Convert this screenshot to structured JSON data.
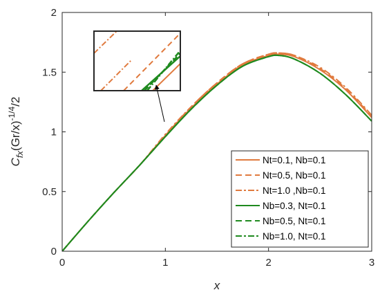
{
  "chart_data": {
    "type": "line",
    "xlabel": "x",
    "ylabel": {
      "c": "C",
      "fx_sub": "fx",
      "mid": "(Gr/x)",
      "sup": "-1/4",
      "tail": "/2"
    },
    "xlim": [
      0,
      3
    ],
    "ylim": [
      0,
      2
    ],
    "xticks": [
      0,
      1,
      2,
      3
    ],
    "xtick_labels": [
      "0",
      "1",
      "2",
      "3"
    ],
    "yticks": [
      0,
      0.5,
      1,
      1.5,
      2
    ],
    "ytick_labels": [
      "0",
      "0.5",
      "1",
      "1.5",
      "2"
    ],
    "grid": false,
    "legend_position": "lower-right",
    "x": [
      0,
      0.25,
      0.5,
      0.75,
      1.0,
      1.25,
      1.5,
      1.75,
      2.0,
      2.1,
      2.25,
      2.5,
      2.75,
      3.0
    ],
    "series": [
      {
        "name": "Nt=0.1, Nb=0.1",
        "color": "#e07a3e",
        "style": "solid",
        "values": [
          0,
          0.25,
          0.49,
          0.72,
          0.97,
          1.2,
          1.4,
          1.56,
          1.64,
          1.65,
          1.63,
          1.52,
          1.35,
          1.12
        ]
      },
      {
        "name": "Nt=0.5, Nb=0.1",
        "color": "#e07a3e",
        "style": "dashed",
        "values": [
          0,
          0.25,
          0.49,
          0.72,
          0.97,
          1.21,
          1.41,
          1.57,
          1.65,
          1.66,
          1.64,
          1.53,
          1.36,
          1.13
        ]
      },
      {
        "name": "Nt=1.0 ,Nb=0.1",
        "color": "#e07a3e",
        "style": "dashdot",
        "values": [
          0,
          0.25,
          0.49,
          0.72,
          0.98,
          1.21,
          1.41,
          1.57,
          1.65,
          1.66,
          1.64,
          1.54,
          1.37,
          1.14
        ]
      },
      {
        "name": "Nb=0.3, Nt=0.1",
        "color": "#1f8a1f",
        "style": "solid",
        "values": [
          0,
          0.25,
          0.49,
          0.72,
          0.96,
          1.19,
          1.39,
          1.55,
          1.63,
          1.64,
          1.61,
          1.49,
          1.31,
          1.09
        ]
      },
      {
        "name": "Nb=0.5, Nt=0.1",
        "color": "#1f8a1f",
        "style": "dashed",
        "values": [
          0,
          0.25,
          0.49,
          0.72,
          0.96,
          1.19,
          1.39,
          1.55,
          1.63,
          1.64,
          1.61,
          1.49,
          1.31,
          1.09
        ]
      },
      {
        "name": "Nb=1.0, Nt=0.1",
        "color": "#1f8a1f",
        "style": "dashdot",
        "values": [
          0,
          0.25,
          0.49,
          0.72,
          0.96,
          1.19,
          1.39,
          1.55,
          1.63,
          1.64,
          1.61,
          1.49,
          1.31,
          1.09
        ]
      }
    ],
    "inset": {
      "kind": "zoom",
      "target_x": 1.0,
      "target_y": 1.0
    }
  }
}
